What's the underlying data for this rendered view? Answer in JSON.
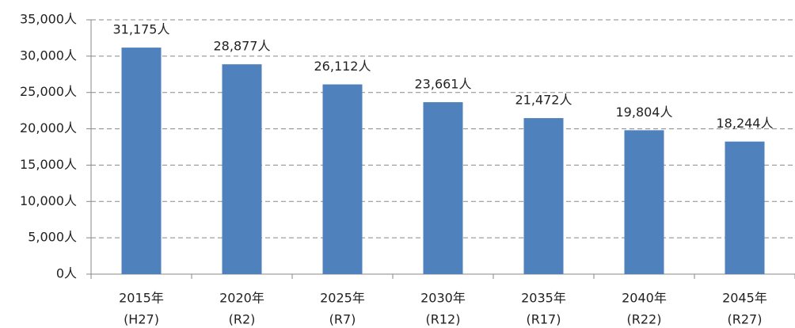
{
  "chart_data": {
    "type": "bar",
    "categories": [
      [
        "2015年",
        "(H27)"
      ],
      [
        "2020年",
        "(R2)"
      ],
      [
        "2025年",
        "(R7)"
      ],
      [
        "2030年",
        "(R12)"
      ],
      [
        "2035年",
        "(R17)"
      ],
      [
        "2040年",
        "(R22)"
      ],
      [
        "2045年",
        "(R27)"
      ]
    ],
    "values": [
      31175,
      28877,
      26112,
      23661,
      21472,
      19804,
      18244
    ],
    "value_labels": [
      "31,175人",
      "28,877人",
      "26,112人",
      "23,661人",
      "21,472人",
      "19,804人",
      "18,244人"
    ],
    "color": "#4f81bd",
    "ylim": [
      0,
      35000
    ],
    "yticks": [
      {
        "value": 0,
        "label": "0人"
      },
      {
        "value": 5000,
        "label": "5,000人"
      },
      {
        "value": 10000,
        "label": "10,000人"
      },
      {
        "value": 15000,
        "label": "15,000人"
      },
      {
        "value": 20000,
        "label": "20,000人"
      },
      {
        "value": 25000,
        "label": "25,000人"
      },
      {
        "value": 30000,
        "label": "30,000人"
      },
      {
        "value": 35000,
        "label": "35,000人"
      }
    ],
    "grid": true
  }
}
